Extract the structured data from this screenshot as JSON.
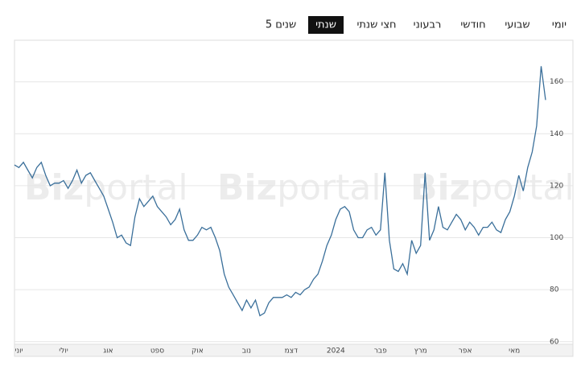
{
  "tabs": [
    {
      "label": "יומי"
    },
    {
      "label": "שבועי"
    },
    {
      "label": "חודשי"
    },
    {
      "label": "רבעוני"
    },
    {
      "label": "חצי שנתי"
    },
    {
      "label": "שנתי",
      "active": true
    },
    {
      "label": "5 שנים"
    }
  ],
  "watermark": {
    "bold": "Biz",
    "light": "portal"
  },
  "chart_data": {
    "type": "line",
    "color": "#3a6f9a",
    "grid": true,
    "ylim": [
      59,
      176
    ],
    "yticks": [
      60,
      80,
      100,
      120,
      140,
      160
    ],
    "categories": [
      null,
      "יוני",
      null,
      null,
      null,
      null,
      null,
      null,
      null,
      null,
      null,
      "יולי",
      null,
      null,
      null,
      null,
      null,
      null,
      null,
      null,
      null,
      "אוג",
      null,
      null,
      null,
      null,
      null,
      null,
      null,
      null,
      null,
      null,
      "ספט",
      null,
      null,
      null,
      null,
      null,
      null,
      null,
      null,
      "אוק",
      null,
      null,
      null,
      null,
      null,
      null,
      null,
      null,
      null,
      null,
      "נוב",
      null,
      null,
      null,
      null,
      null,
      null,
      null,
      null,
      null,
      "דצמ",
      null,
      null,
      null,
      null,
      null,
      null,
      null,
      null,
      null,
      "2024",
      null,
      null,
      null,
      null,
      null,
      null,
      null,
      null,
      null,
      "פבר",
      null,
      null,
      null,
      null,
      null,
      null,
      null,
      null,
      "מרץ",
      null,
      null,
      null,
      null,
      null,
      null,
      null,
      null,
      null,
      "אפר",
      null,
      null,
      null,
      null,
      null,
      null,
      null,
      null,
      null,
      null,
      "מאי",
      null,
      null,
      null,
      null,
      null,
      null,
      null
    ],
    "values": [
      128,
      127,
      129,
      126,
      123,
      127,
      129,
      124,
      120,
      121,
      121,
      122,
      119,
      122,
      126,
      121,
      124,
      125,
      122,
      119,
      116,
      111,
      106,
      100,
      101,
      98,
      97,
      108,
      115,
      112,
      114,
      116,
      112,
      110,
      108,
      105,
      107,
      111,
      103,
      99,
      99,
      101,
      104,
      103,
      104,
      100,
      95,
      86,
      81,
      78,
      75,
      72,
      76,
      73,
      76,
      70,
      71,
      75,
      77,
      77,
      77,
      78,
      77,
      79,
      78,
      80,
      81,
      84,
      86,
      91,
      97,
      101,
      107,
      111,
      112,
      110,
      103,
      100,
      100,
      103,
      104,
      101,
      103,
      125,
      99,
      88,
      87,
      90,
      86,
      99,
      94,
      97,
      125,
      99,
      103,
      112,
      104,
      103,
      106,
      109,
      107,
      103,
      106,
      104,
      101,
      104,
      104,
      106,
      103,
      102,
      107,
      110,
      116,
      124,
      118,
      127,
      133,
      143,
      166,
      153
    ]
  }
}
